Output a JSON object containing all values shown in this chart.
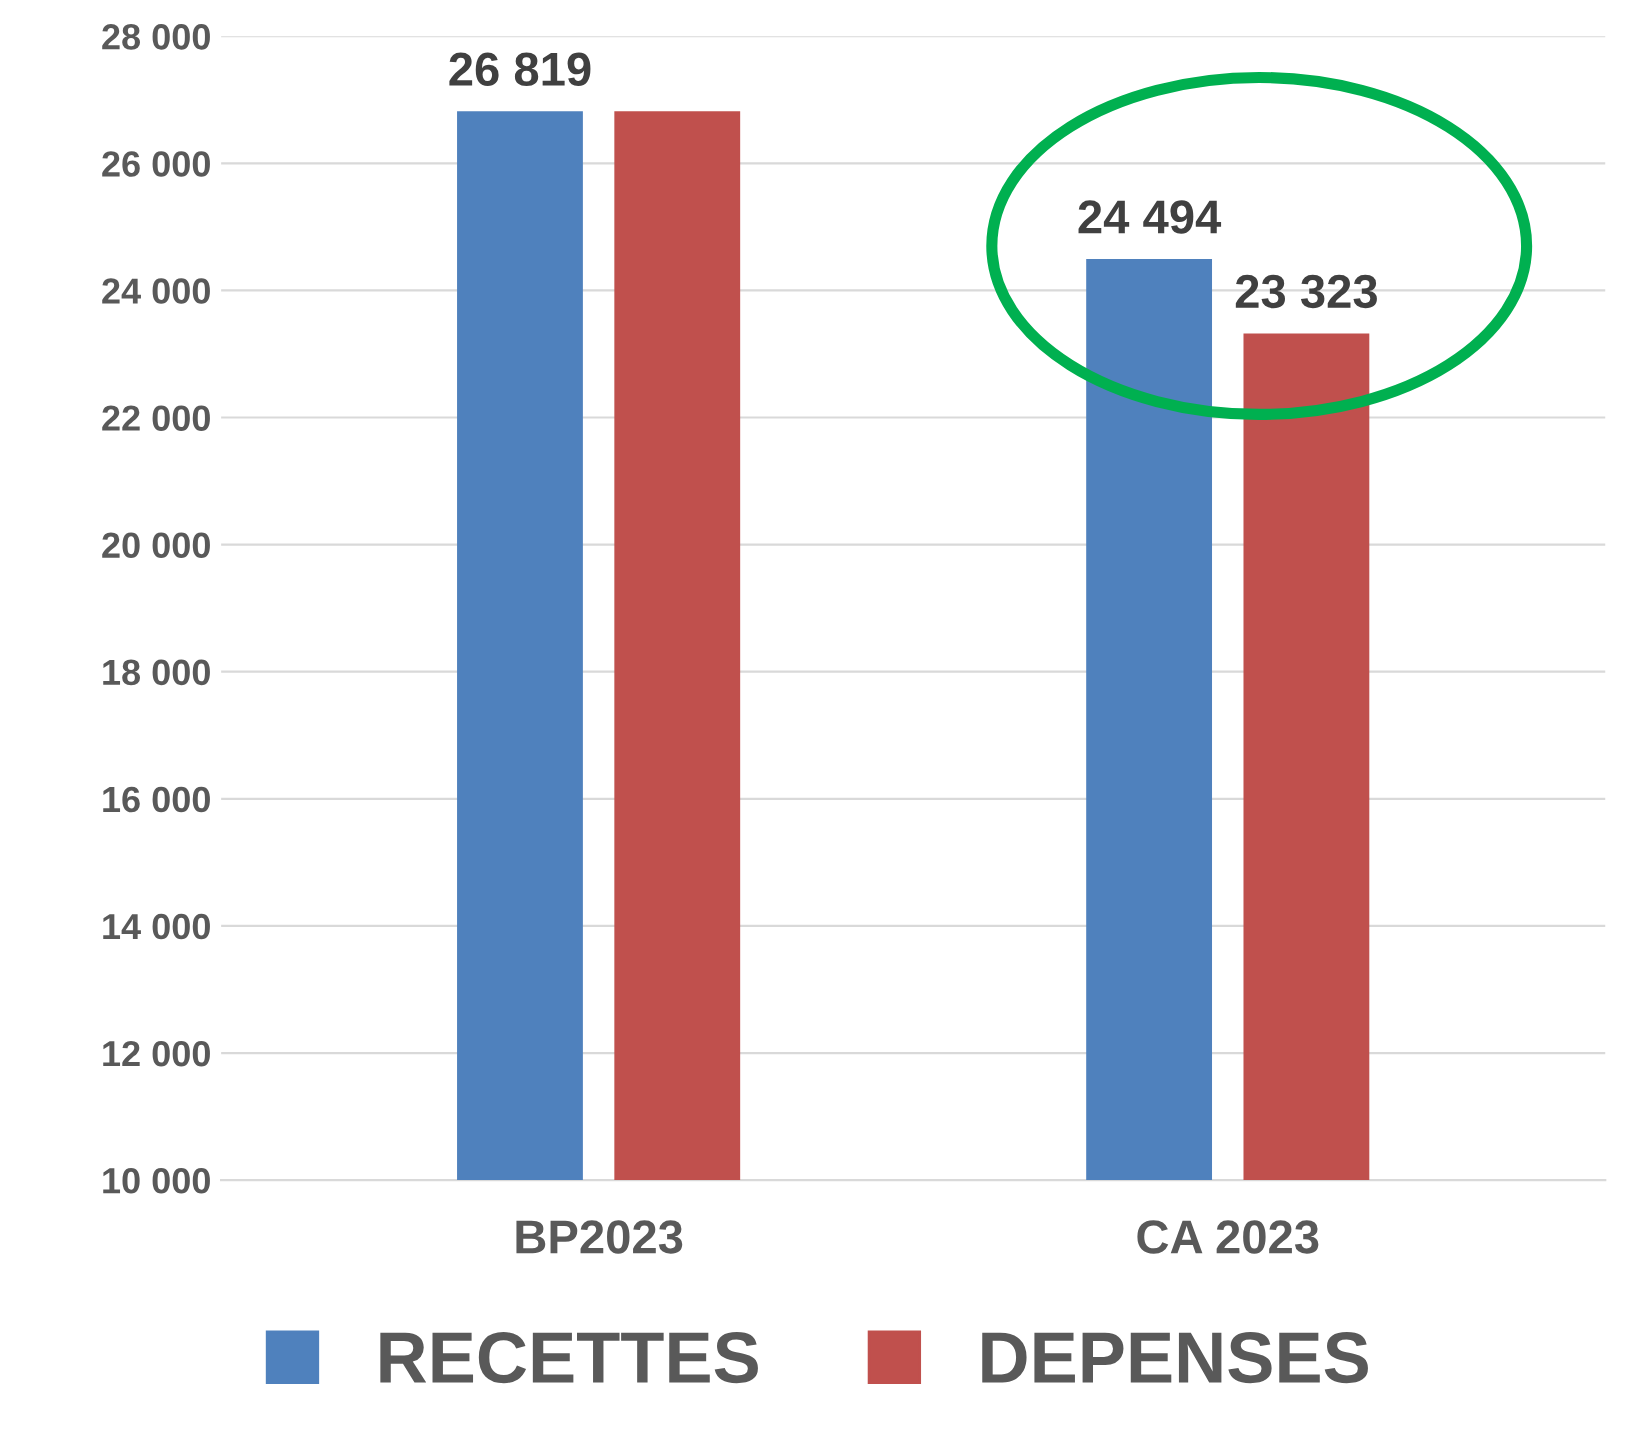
{
  "chart_data": {
    "type": "bar",
    "categories": [
      "BP2023",
      "CA 2023"
    ],
    "series": [
      {
        "name": "RECETTES",
        "color": "#4f81bd",
        "values": [
          26819,
          24494
        ],
        "value_labels": [
          "26 819",
          "24 494"
        ]
      },
      {
        "name": "DEPENSES",
        "color": "#c0504d",
        "values": [
          26819,
          23323
        ],
        "value_labels": [
          null,
          "23 323"
        ]
      }
    ],
    "ylim": [
      10000,
      28000
    ],
    "yticks": [
      {
        "value": 10000,
        "label": "10 000"
      },
      {
        "value": 12000,
        "label": "12 000"
      },
      {
        "value": 14000,
        "label": "14 000"
      },
      {
        "value": 16000,
        "label": "16 000"
      },
      {
        "value": 18000,
        "label": "18 000"
      },
      {
        "value": 20000,
        "label": "20 000"
      },
      {
        "value": 22000,
        "label": "22 000"
      },
      {
        "value": 24000,
        "label": "24 000"
      },
      {
        "value": 26000,
        "label": "26 000"
      },
      {
        "value": 28000,
        "label": "28 000"
      }
    ],
    "grid": "y",
    "legend": "bottom"
  }
}
